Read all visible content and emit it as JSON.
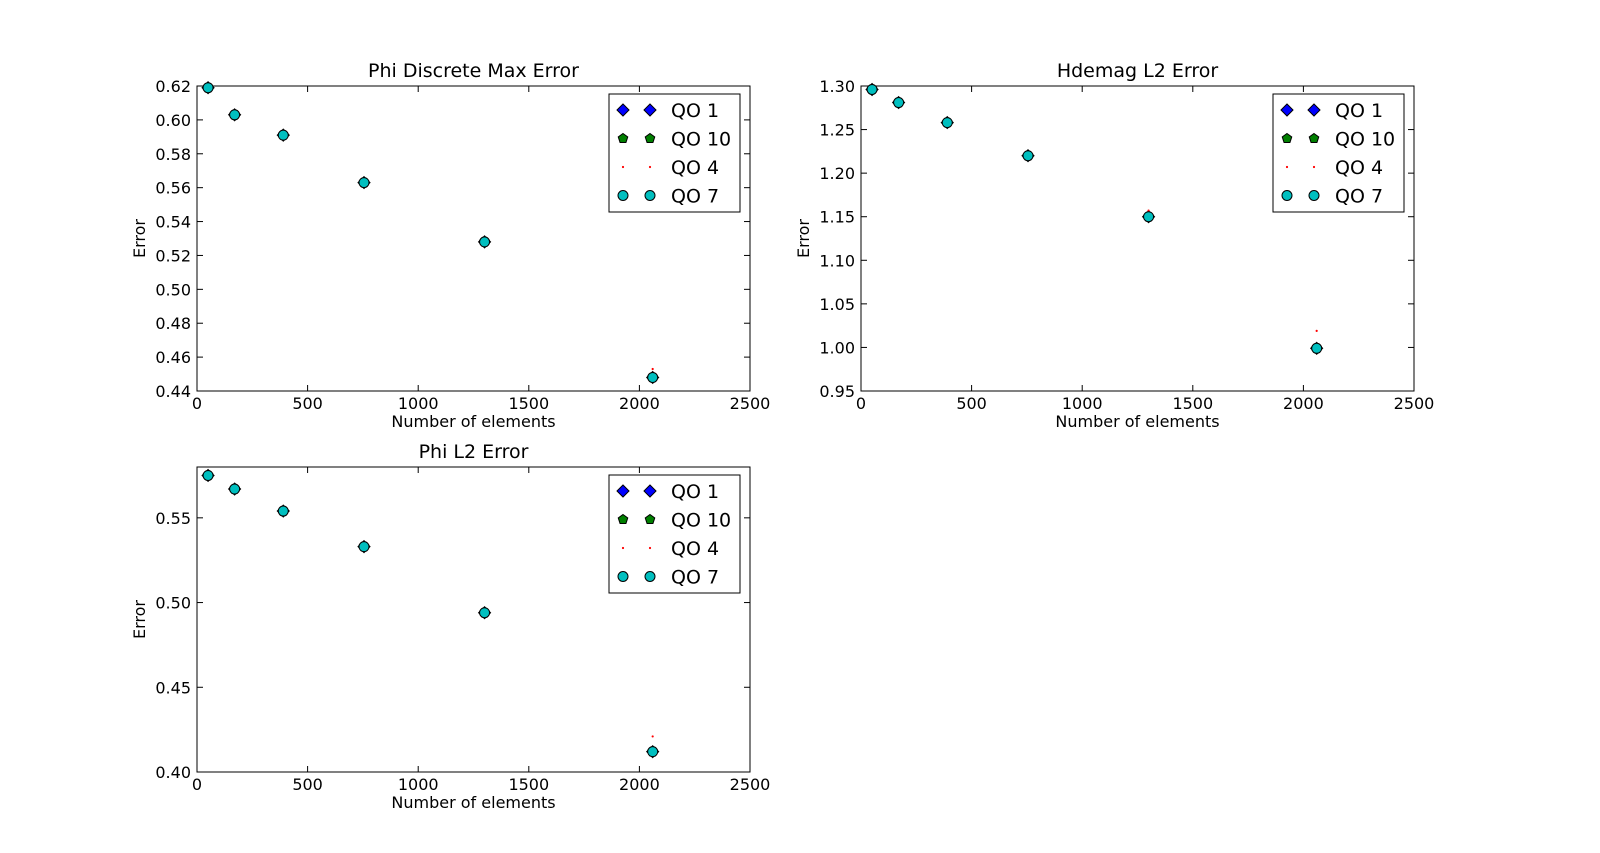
{
  "legend": [
    {
      "label": "QO 1",
      "marker": "diamond",
      "color": "#0000ff"
    },
    {
      "label": "QO 10",
      "marker": "pentagon",
      "color": "#007f00"
    },
    {
      "label": "QO 4",
      "marker": "point",
      "color": "#ff0000"
    },
    {
      "label": "QO 7",
      "marker": "circle",
      "color": "#00bfbf"
    }
  ],
  "chart_data": [
    {
      "type": "scatter",
      "title": "Phi Discrete Max Error",
      "xlabel": "Number of elements",
      "ylabel": "Error",
      "xlim": [
        0,
        2500
      ],
      "ylim": [
        0.44,
        0.62
      ],
      "xticks": [
        "0",
        "500",
        "1000",
        "1500",
        "2000",
        "2500"
      ],
      "yticks": [
        "0.44",
        "0.46",
        "0.48",
        "0.50",
        "0.52",
        "0.54",
        "0.56",
        "0.58",
        "0.60",
        "0.62"
      ],
      "legend_position": "top-right",
      "x": [
        50,
        170,
        390,
        755,
        1300,
        2060
      ],
      "series": [
        {
          "name": "QO 1",
          "values": [
            0.619,
            0.603,
            0.591,
            0.563,
            0.528,
            0.448
          ]
        },
        {
          "name": "QO 10",
          "values": [
            0.619,
            0.603,
            0.591,
            0.563,
            0.528,
            0.448
          ]
        },
        {
          "name": "QO 4",
          "values": [
            0.619,
            0.603,
            0.591,
            0.563,
            0.529,
            0.453
          ]
        },
        {
          "name": "QO 7",
          "values": [
            0.619,
            0.603,
            0.591,
            0.563,
            0.528,
            0.448
          ]
        }
      ]
    },
    {
      "type": "scatter",
      "title": "Hdemag L2 Error",
      "xlabel": "Number of elements",
      "ylabel": "Error",
      "xlim": [
        0,
        2500
      ],
      "ylim": [
        0.95,
        1.3
      ],
      "xticks": [
        "0",
        "500",
        "1000",
        "1500",
        "2000",
        "2500"
      ],
      "yticks": [
        "0.95",
        "1.00",
        "1.05",
        "1.10",
        "1.15",
        "1.20",
        "1.25",
        "1.30"
      ],
      "legend_position": "top-right",
      "x": [
        50,
        170,
        390,
        755,
        1300,
        2060
      ],
      "series": [
        {
          "name": "QO 1",
          "values": [
            1.296,
            1.281,
            1.258,
            1.22,
            1.15,
            0.999
          ]
        },
        {
          "name": "QO 10",
          "values": [
            1.296,
            1.281,
            1.258,
            1.22,
            1.15,
            0.999
          ]
        },
        {
          "name": "QO 4",
          "values": [
            1.296,
            1.281,
            1.258,
            1.22,
            1.157,
            1.019
          ]
        },
        {
          "name": "QO 7",
          "values": [
            1.296,
            1.281,
            1.258,
            1.22,
            1.15,
            0.999
          ]
        }
      ]
    },
    {
      "type": "scatter",
      "title": "Phi L2 Error",
      "xlabel": "Number of elements",
      "ylabel": "Error",
      "xlim": [
        0,
        2500
      ],
      "ylim": [
        0.4,
        0.58
      ],
      "xticks": [
        "0",
        "500",
        "1000",
        "1500",
        "2000",
        "2500"
      ],
      "yticks": [
        "0.40",
        "0.45",
        "0.50",
        "0.55"
      ],
      "legend_position": "top-right",
      "x": [
        50,
        170,
        390,
        755,
        1300,
        2060
      ],
      "series": [
        {
          "name": "QO 1",
          "values": [
            0.575,
            0.567,
            0.554,
            0.533,
            0.494,
            0.412
          ]
        },
        {
          "name": "QO 10",
          "values": [
            0.575,
            0.567,
            0.554,
            0.533,
            0.494,
            0.412
          ]
        },
        {
          "name": "QO 4",
          "values": [
            0.575,
            0.567,
            0.554,
            0.533,
            0.495,
            0.421
          ]
        },
        {
          "name": "QO 7",
          "values": [
            0.575,
            0.567,
            0.554,
            0.533,
            0.494,
            0.412
          ]
        }
      ]
    }
  ]
}
